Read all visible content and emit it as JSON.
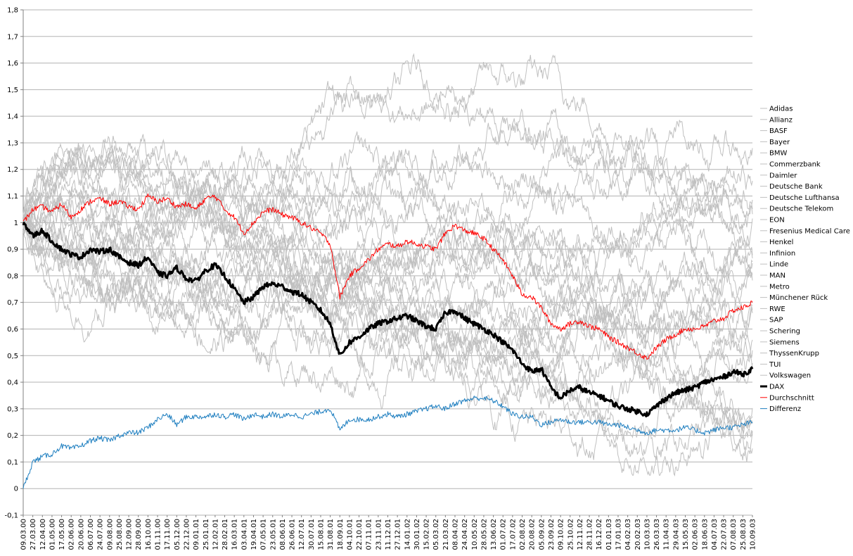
{
  "chart_data": {
    "type": "line",
    "title": "",
    "xlabel": "",
    "ylabel": "",
    "ylim": [
      -0.1,
      1.8
    ],
    "yticks": [
      "-0,1",
      "0",
      "0,1",
      "0,2",
      "0,3",
      "0,4",
      "0,5",
      "0,6",
      "0,7",
      "0,8",
      "0,9",
      "1",
      "1,1",
      "1,2",
      "1,3",
      "1,4",
      "1,5",
      "1,6",
      "1,7",
      "1,8"
    ],
    "grid": true,
    "legend_position": "right",
    "x_tick_labels": [
      "09.03.00",
      "27.03.00",
      "12.04.00",
      "01.05.00",
      "17.05.00",
      "02.06.00",
      "20.06.00",
      "06.07.00",
      "24.07.00",
      "09.08.00",
      "25.08.00",
      "12.09.00",
      "28.09.00",
      "16.10.00",
      "01.11.00",
      "17.11.00",
      "05.12.00",
      "22.12.00",
      "09.01.01",
      "25.01.01",
      "12.02.01",
      "28.02.01",
      "16.03.01",
      "03.04.01",
      "19.04.01",
      "07.05.01",
      "23.05.01",
      "08.06.01",
      "26.06.01",
      "12.07.01",
      "30.07.01",
      "15.08.01",
      "31.08.01",
      "18.09.01",
      "04.10.01",
      "22.10.01",
      "07.11.01",
      "23.11.01",
      "11.12.01",
      "27.12.01",
      "14.01.02",
      "30.01.02",
      "15.02.02",
      "05.03.02",
      "21.03.02",
      "08.04.02",
      "24.04.02",
      "10.05.02",
      "28.05.02",
      "13.06.02",
      "01.07.02",
      "17.07.02",
      "02.08.02",
      "20.08.02",
      "05.09.02",
      "23.09.02",
      "09.10.02",
      "25.10.02",
      "12.11.02",
      "28.11.02",
      "16.12.02",
      "01.01.03",
      "17.01.03",
      "04.02.03",
      "20.02.03",
      "10.03.03",
      "26.03.03",
      "11.04.03",
      "29.04.03",
      "15.05.03",
      "02.06.03",
      "18.06.03",
      "04.07.03",
      "22.07.03",
      "07.08.03",
      "25.08.03",
      "10.09.03"
    ],
    "series": [
      {
        "name": "Adidas",
        "color": "#c0c0c0",
        "width": 1
      },
      {
        "name": "Allianz",
        "color": "#c0c0c0",
        "width": 1
      },
      {
        "name": "BASF",
        "color": "#c0c0c0",
        "width": 1
      },
      {
        "name": "Bayer",
        "color": "#c0c0c0",
        "width": 1
      },
      {
        "name": "BMW",
        "color": "#c0c0c0",
        "width": 1
      },
      {
        "name": "Commerzbank",
        "color": "#c0c0c0",
        "width": 1
      },
      {
        "name": "Daimler",
        "color": "#c0c0c0",
        "width": 1
      },
      {
        "name": "Deutsche Bank",
        "color": "#c0c0c0",
        "width": 1
      },
      {
        "name": "Deutsche Lufthansa",
        "color": "#c0c0c0",
        "width": 1
      },
      {
        "name": "Deutsche Telekom",
        "color": "#c0c0c0",
        "width": 1
      },
      {
        "name": "EON",
        "color": "#c0c0c0",
        "width": 1
      },
      {
        "name": "Fresenius Medical Care",
        "color": "#c0c0c0",
        "width": 1
      },
      {
        "name": "Henkel",
        "color": "#c0c0c0",
        "width": 1
      },
      {
        "name": "Infinion",
        "color": "#c0c0c0",
        "width": 1
      },
      {
        "name": "Linde",
        "color": "#c0c0c0",
        "width": 1
      },
      {
        "name": "MAN",
        "color": "#c0c0c0",
        "width": 1
      },
      {
        "name": "Metro",
        "color": "#c0c0c0",
        "width": 1
      },
      {
        "name": "Münchener Rück",
        "color": "#c0c0c0",
        "width": 1
      },
      {
        "name": "RWE",
        "color": "#c0c0c0",
        "width": 1
      },
      {
        "name": "SAP",
        "color": "#c0c0c0",
        "width": 1
      },
      {
        "name": "Schering",
        "color": "#c0c0c0",
        "width": 1
      },
      {
        "name": "Siemens",
        "color": "#c0c0c0",
        "width": 1
      },
      {
        "name": "ThyssenKrupp",
        "color": "#c0c0c0",
        "width": 1
      },
      {
        "name": "TUI",
        "color": "#c0c0c0",
        "width": 1
      },
      {
        "name": "Volkswagen",
        "color": "#c0c0c0",
        "width": 1
      },
      {
        "name": "DAX",
        "color": "#000000",
        "width": 3,
        "values": [
          [
            0,
            1.0
          ],
          [
            1,
            0.95
          ],
          [
            2,
            0.97
          ],
          [
            3,
            0.93
          ],
          [
            4,
            0.9
          ],
          [
            5,
            0.88
          ],
          [
            6,
            0.87
          ],
          [
            7,
            0.9
          ],
          [
            8,
            0.89
          ],
          [
            9,
            0.9
          ],
          [
            10,
            0.87
          ],
          [
            11,
            0.85
          ],
          [
            12,
            0.84
          ],
          [
            13,
            0.87
          ],
          [
            14,
            0.81
          ],
          [
            15,
            0.8
          ],
          [
            16,
            0.83
          ],
          [
            17,
            0.79
          ],
          [
            18,
            0.78
          ],
          [
            19,
            0.82
          ],
          [
            20,
            0.84
          ],
          [
            21,
            0.8
          ],
          [
            22,
            0.75
          ],
          [
            23,
            0.7
          ],
          [
            24,
            0.72
          ],
          [
            25,
            0.76
          ],
          [
            26,
            0.77
          ],
          [
            27,
            0.76
          ],
          [
            28,
            0.74
          ],
          [
            29,
            0.73
          ],
          [
            30,
            0.7
          ],
          [
            31,
            0.67
          ],
          [
            32,
            0.62
          ],
          [
            33,
            0.5
          ],
          [
            34,
            0.55
          ],
          [
            35,
            0.57
          ],
          [
            36,
            0.6
          ],
          [
            37,
            0.62
          ],
          [
            38,
            0.63
          ],
          [
            39,
            0.64
          ],
          [
            40,
            0.65
          ],
          [
            41,
            0.63
          ],
          [
            42,
            0.61
          ],
          [
            43,
            0.6
          ],
          [
            44,
            0.66
          ],
          [
            45,
            0.67
          ],
          [
            46,
            0.64
          ],
          [
            47,
            0.62
          ],
          [
            48,
            0.6
          ],
          [
            49,
            0.58
          ],
          [
            50,
            0.55
          ],
          [
            51,
            0.52
          ],
          [
            52,
            0.47
          ],
          [
            53,
            0.44
          ],
          [
            54,
            0.45
          ],
          [
            55,
            0.38
          ],
          [
            56,
            0.34
          ],
          [
            57,
            0.37
          ],
          [
            58,
            0.38
          ],
          [
            59,
            0.36
          ],
          [
            60,
            0.35
          ],
          [
            61,
            0.33
          ],
          [
            62,
            0.31
          ],
          [
            63,
            0.3
          ],
          [
            64,
            0.29
          ],
          [
            65,
            0.28
          ],
          [
            66,
            0.31
          ],
          [
            67,
            0.34
          ],
          [
            68,
            0.36
          ],
          [
            69,
            0.37
          ],
          [
            70,
            0.38
          ],
          [
            71,
            0.4
          ],
          [
            72,
            0.41
          ],
          [
            73,
            0.42
          ],
          [
            74,
            0.44
          ],
          [
            75,
            0.43
          ],
          [
            76,
            0.45
          ]
        ]
      },
      {
        "name": "Durchschnitt",
        "color": "#ff0000",
        "width": 1,
        "values": [
          [
            0,
            1.0
          ],
          [
            1,
            1.05
          ],
          [
            2,
            1.06
          ],
          [
            3,
            1.04
          ],
          [
            4,
            1.07
          ],
          [
            5,
            1.02
          ],
          [
            6,
            1.05
          ],
          [
            7,
            1.08
          ],
          [
            8,
            1.09
          ],
          [
            9,
            1.07
          ],
          [
            10,
            1.08
          ],
          [
            11,
            1.06
          ],
          [
            12,
            1.05
          ],
          [
            13,
            1.1
          ],
          [
            14,
            1.08
          ],
          [
            15,
            1.09
          ],
          [
            16,
            1.06
          ],
          [
            17,
            1.07
          ],
          [
            18,
            1.05
          ],
          [
            19,
            1.09
          ],
          [
            20,
            1.1
          ],
          [
            21,
            1.05
          ],
          [
            22,
            1.02
          ],
          [
            23,
            0.96
          ],
          [
            24,
            1.0
          ],
          [
            25,
            1.04
          ],
          [
            26,
            1.05
          ],
          [
            27,
            1.03
          ],
          [
            28,
            1.02
          ],
          [
            29,
            1.0
          ],
          [
            30,
            0.98
          ],
          [
            31,
            0.96
          ],
          [
            32,
            0.92
          ],
          [
            33,
            0.72
          ],
          [
            34,
            0.8
          ],
          [
            35,
            0.83
          ],
          [
            36,
            0.86
          ],
          [
            37,
            0.9
          ],
          [
            38,
            0.92
          ],
          [
            39,
            0.91
          ],
          [
            40,
            0.93
          ],
          [
            41,
            0.92
          ],
          [
            42,
            0.91
          ],
          [
            43,
            0.9
          ],
          [
            44,
            0.96
          ],
          [
            45,
            0.99
          ],
          [
            46,
            0.97
          ],
          [
            47,
            0.96
          ],
          [
            48,
            0.94
          ],
          [
            49,
            0.9
          ],
          [
            50,
            0.86
          ],
          [
            51,
            0.8
          ],
          [
            52,
            0.73
          ],
          [
            53,
            0.72
          ],
          [
            54,
            0.68
          ],
          [
            55,
            0.62
          ],
          [
            56,
            0.6
          ],
          [
            57,
            0.62
          ],
          [
            58,
            0.63
          ],
          [
            59,
            0.61
          ],
          [
            60,
            0.6
          ],
          [
            61,
            0.57
          ],
          [
            62,
            0.55
          ],
          [
            63,
            0.53
          ],
          [
            64,
            0.51
          ],
          [
            65,
            0.49
          ],
          [
            66,
            0.53
          ],
          [
            67,
            0.56
          ],
          [
            68,
            0.58
          ],
          [
            69,
            0.6
          ],
          [
            70,
            0.6
          ],
          [
            71,
            0.61
          ],
          [
            72,
            0.63
          ],
          [
            73,
            0.64
          ],
          [
            74,
            0.67
          ],
          [
            75,
            0.68
          ],
          [
            76,
            0.7
          ]
        ]
      },
      {
        "name": "Differenz",
        "color": "#1f7fc0",
        "width": 1,
        "values": [
          [
            0,
            0.0
          ],
          [
            1,
            0.1
          ],
          [
            2,
            0.12
          ],
          [
            3,
            0.13
          ],
          [
            4,
            0.16
          ],
          [
            5,
            0.15
          ],
          [
            6,
            0.16
          ],
          [
            7,
            0.18
          ],
          [
            8,
            0.19
          ],
          [
            9,
            0.18
          ],
          [
            10,
            0.2
          ],
          [
            11,
            0.21
          ],
          [
            12,
            0.21
          ],
          [
            13,
            0.23
          ],
          [
            14,
            0.26
          ],
          [
            15,
            0.28
          ],
          [
            16,
            0.24
          ],
          [
            17,
            0.27
          ],
          [
            18,
            0.27
          ],
          [
            19,
            0.27
          ],
          [
            20,
            0.28
          ],
          [
            21,
            0.27
          ],
          [
            22,
            0.28
          ],
          [
            23,
            0.26
          ],
          [
            24,
            0.28
          ],
          [
            25,
            0.27
          ],
          [
            26,
            0.28
          ],
          [
            27,
            0.27
          ],
          [
            28,
            0.28
          ],
          [
            29,
            0.27
          ],
          [
            30,
            0.28
          ],
          [
            31,
            0.29
          ],
          [
            32,
            0.3
          ],
          [
            33,
            0.22
          ],
          [
            34,
            0.26
          ],
          [
            35,
            0.26
          ],
          [
            36,
            0.26
          ],
          [
            37,
            0.27
          ],
          [
            38,
            0.28
          ],
          [
            39,
            0.27
          ],
          [
            40,
            0.28
          ],
          [
            41,
            0.29
          ],
          [
            42,
            0.3
          ],
          [
            43,
            0.31
          ],
          [
            44,
            0.3
          ],
          [
            45,
            0.32
          ],
          [
            46,
            0.33
          ],
          [
            47,
            0.34
          ],
          [
            48,
            0.34
          ],
          [
            49,
            0.33
          ],
          [
            50,
            0.31
          ],
          [
            51,
            0.28
          ],
          [
            52,
            0.27
          ],
          [
            53,
            0.27
          ],
          [
            54,
            0.24
          ],
          [
            55,
            0.25
          ],
          [
            56,
            0.26
          ],
          [
            57,
            0.25
          ],
          [
            58,
            0.25
          ],
          [
            59,
            0.25
          ],
          [
            60,
            0.25
          ],
          [
            61,
            0.24
          ],
          [
            62,
            0.24
          ],
          [
            63,
            0.23
          ],
          [
            64,
            0.22
          ],
          [
            65,
            0.21
          ],
          [
            66,
            0.22
          ],
          [
            67,
            0.22
          ],
          [
            68,
            0.22
          ],
          [
            69,
            0.23
          ],
          [
            70,
            0.22
          ],
          [
            71,
            0.21
          ],
          [
            72,
            0.22
          ],
          [
            73,
            0.23
          ],
          [
            74,
            0.23
          ],
          [
            75,
            0.24
          ],
          [
            76,
            0.25
          ]
        ]
      }
    ]
  }
}
